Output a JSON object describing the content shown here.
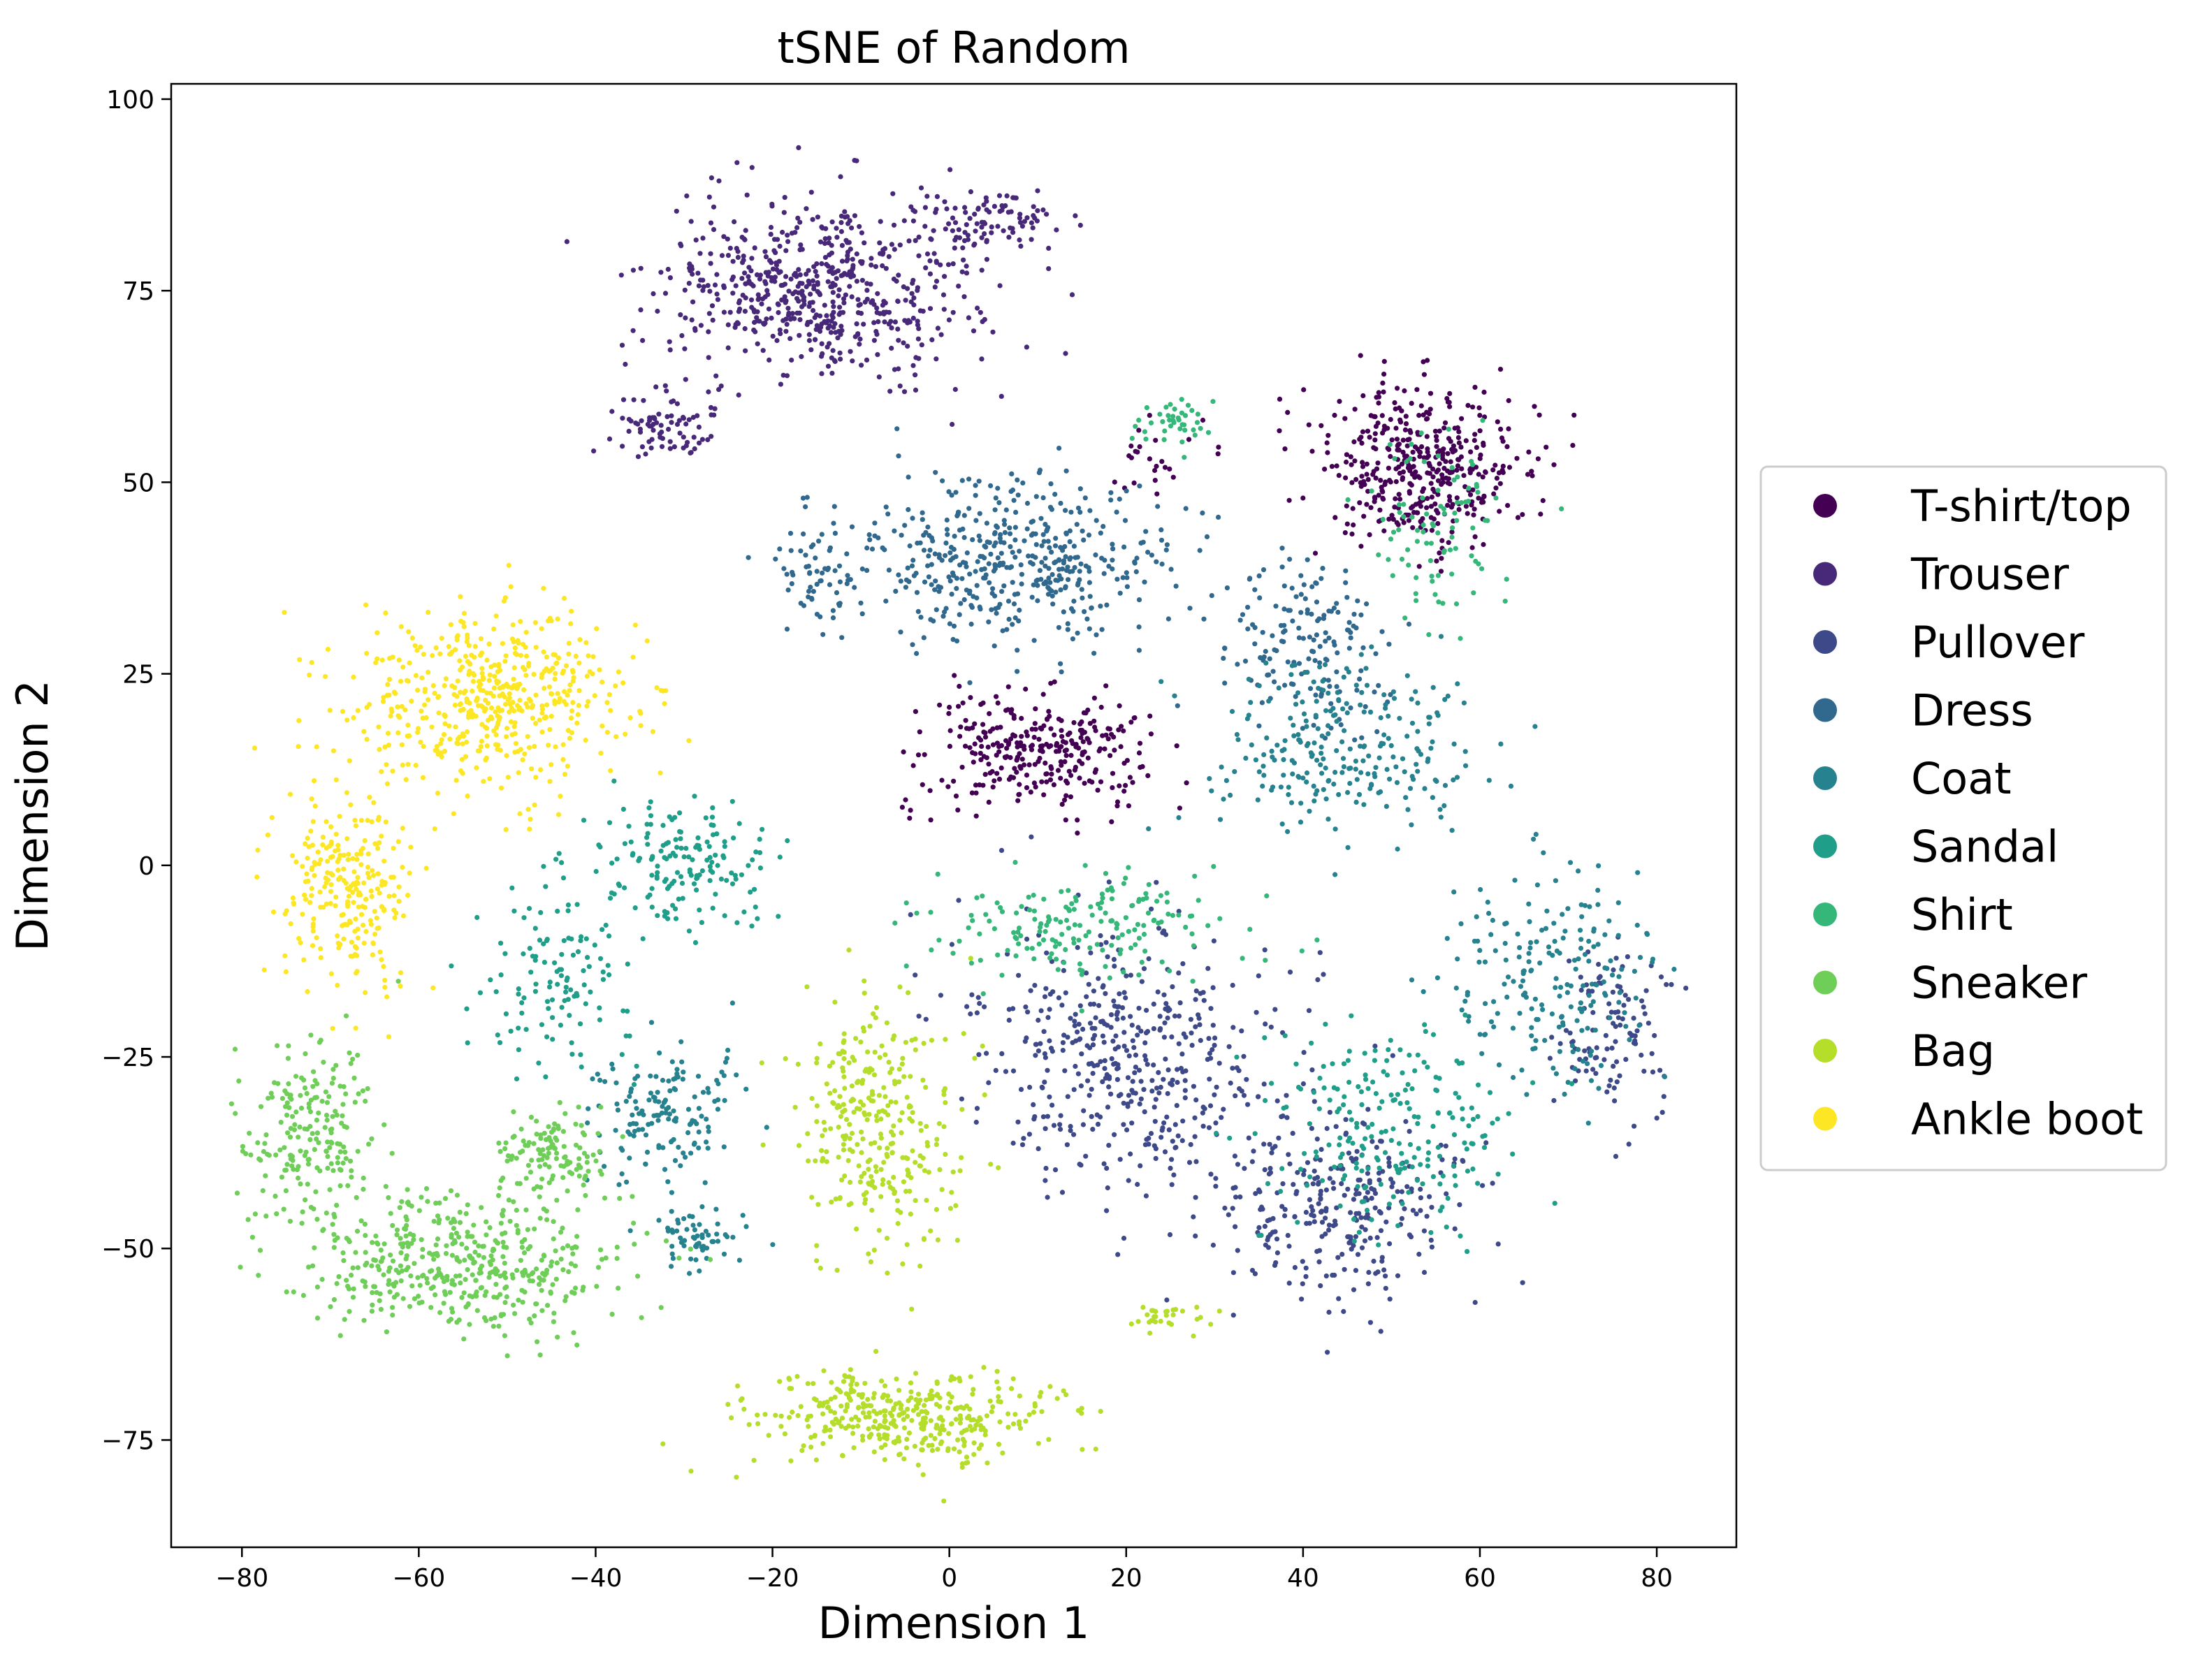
{
  "chart_data": {
    "type": "scatter",
    "title": "tSNE of Random",
    "xlabel": "Dimension 1",
    "ylabel": "Dimension 2",
    "xlim": [
      -88,
      89
    ],
    "ylim": [
      -89,
      102
    ],
    "xticks": [
      -80,
      -60,
      -40,
      -20,
      0,
      20,
      40,
      60,
      80
    ],
    "yticks": [
      -75,
      -50,
      -25,
      0,
      25,
      50,
      75,
      100
    ],
    "grid": false,
    "legend_position": "center-right outside",
    "series": [
      {
        "name": "T-shirt/top",
        "color": "#440154",
        "clusters": [
          {
            "center": [
              53,
              52
            ],
            "spread": [
              8,
              7
            ],
            "count": 420
          },
          {
            "center": [
              10,
              15
            ],
            "spread": [
              9,
              5
            ],
            "count": 300
          },
          {
            "center": [
              24,
              53
            ],
            "spread": [
              4,
              3
            ],
            "count": 25
          }
        ]
      },
      {
        "name": "Trouser",
        "color": "#482878",
        "clusters": [
          {
            "center": [
              -15,
              75
            ],
            "spread": [
              12,
              8
            ],
            "count": 600
          },
          {
            "center": [
              -32,
              57
            ],
            "spread": [
              4,
              3
            ],
            "count": 80
          },
          {
            "center": [
              5,
              84
            ],
            "spread": [
              7,
              3
            ],
            "count": 90
          }
        ]
      },
      {
        "name": "Pullover",
        "color": "#3e4989",
        "clusters": [
          {
            "center": [
              20,
              -25
            ],
            "spread": [
              12,
              11
            ],
            "count": 450
          },
          {
            "center": [
              45,
              -45
            ],
            "spread": [
              10,
              8
            ],
            "count": 300
          },
          {
            "center": [
              75,
              -22
            ],
            "spread": [
              4,
              7
            ],
            "count": 110
          }
        ]
      },
      {
        "name": "Dress",
        "color": "#31688e",
        "clusters": [
          {
            "center": [
              8,
              40
            ],
            "spread": [
              12,
              7
            ],
            "count": 450
          },
          {
            "center": [
              -15,
              38
            ],
            "spread": [
              3,
              5
            ],
            "count": 60
          },
          {
            "center": [
              40,
              28
            ],
            "spread": [
              7,
              7
            ],
            "count": 160
          }
        ]
      },
      {
        "name": "Coat",
        "color": "#26828e",
        "clusters": [
          {
            "center": [
              45,
              15
            ],
            "spread": [
              10,
              8
            ],
            "count": 250
          },
          {
            "center": [
              68,
              -15
            ],
            "spread": [
              8,
              10
            ],
            "count": 200
          },
          {
            "center": [
              -32,
              -32
            ],
            "spread": [
              6,
              6
            ],
            "count": 150
          },
          {
            "center": [
              -28,
              -48
            ],
            "spread": [
              4,
              3
            ],
            "count": 60
          }
        ]
      },
      {
        "name": "Sandal",
        "color": "#1f9e89",
        "clusters": [
          {
            "center": [
              -30,
              0
            ],
            "spread": [
              7,
              5
            ],
            "count": 160
          },
          {
            "center": [
              -45,
              -15
            ],
            "spread": [
              6,
              9
            ],
            "count": 120
          },
          {
            "center": [
              50,
              -35
            ],
            "spread": [
              9,
              9
            ],
            "count": 220
          }
        ]
      },
      {
        "name": "Shirt",
        "color": "#35b779",
        "clusters": [
          {
            "center": [
              15,
              -8
            ],
            "spread": [
              12,
              5
            ],
            "count": 180
          },
          {
            "center": [
              55,
              45
            ],
            "spread": [
              5,
              8
            ],
            "count": 90
          },
          {
            "center": [
              25,
              58
            ],
            "spread": [
              3,
              2
            ],
            "count": 40
          }
        ]
      },
      {
        "name": "Sneaker",
        "color": "#6ece58",
        "clusters": [
          {
            "center": [
              -55,
              -52
            ],
            "spread": [
              11,
              6
            ],
            "count": 450
          },
          {
            "center": [
              -72,
              -35
            ],
            "spread": [
              5,
              8
            ],
            "count": 200
          },
          {
            "center": [
              -45,
              -38
            ],
            "spread": [
              4,
              4
            ],
            "count": 120
          }
        ]
      },
      {
        "name": "Bag",
        "color": "#b5de2b",
        "clusters": [
          {
            "center": [
              -8,
              -35
            ],
            "spread": [
              6,
              11
            ],
            "count": 300
          },
          {
            "center": [
              -5,
              -72
            ],
            "spread": [
              11,
              4
            ],
            "count": 380
          },
          {
            "center": [
              25,
              -59
            ],
            "spread": [
              3,
              1.5
            ],
            "count": 30
          }
        ]
      },
      {
        "name": "Ankle boot",
        "color": "#fde725",
        "clusters": [
          {
            "center": [
              -52,
              22
            ],
            "spread": [
              10,
              8
            ],
            "count": 500
          },
          {
            "center": [
              -68,
              -3
            ],
            "spread": [
              5,
              9
            ],
            "count": 250
          }
        ]
      }
    ]
  }
}
